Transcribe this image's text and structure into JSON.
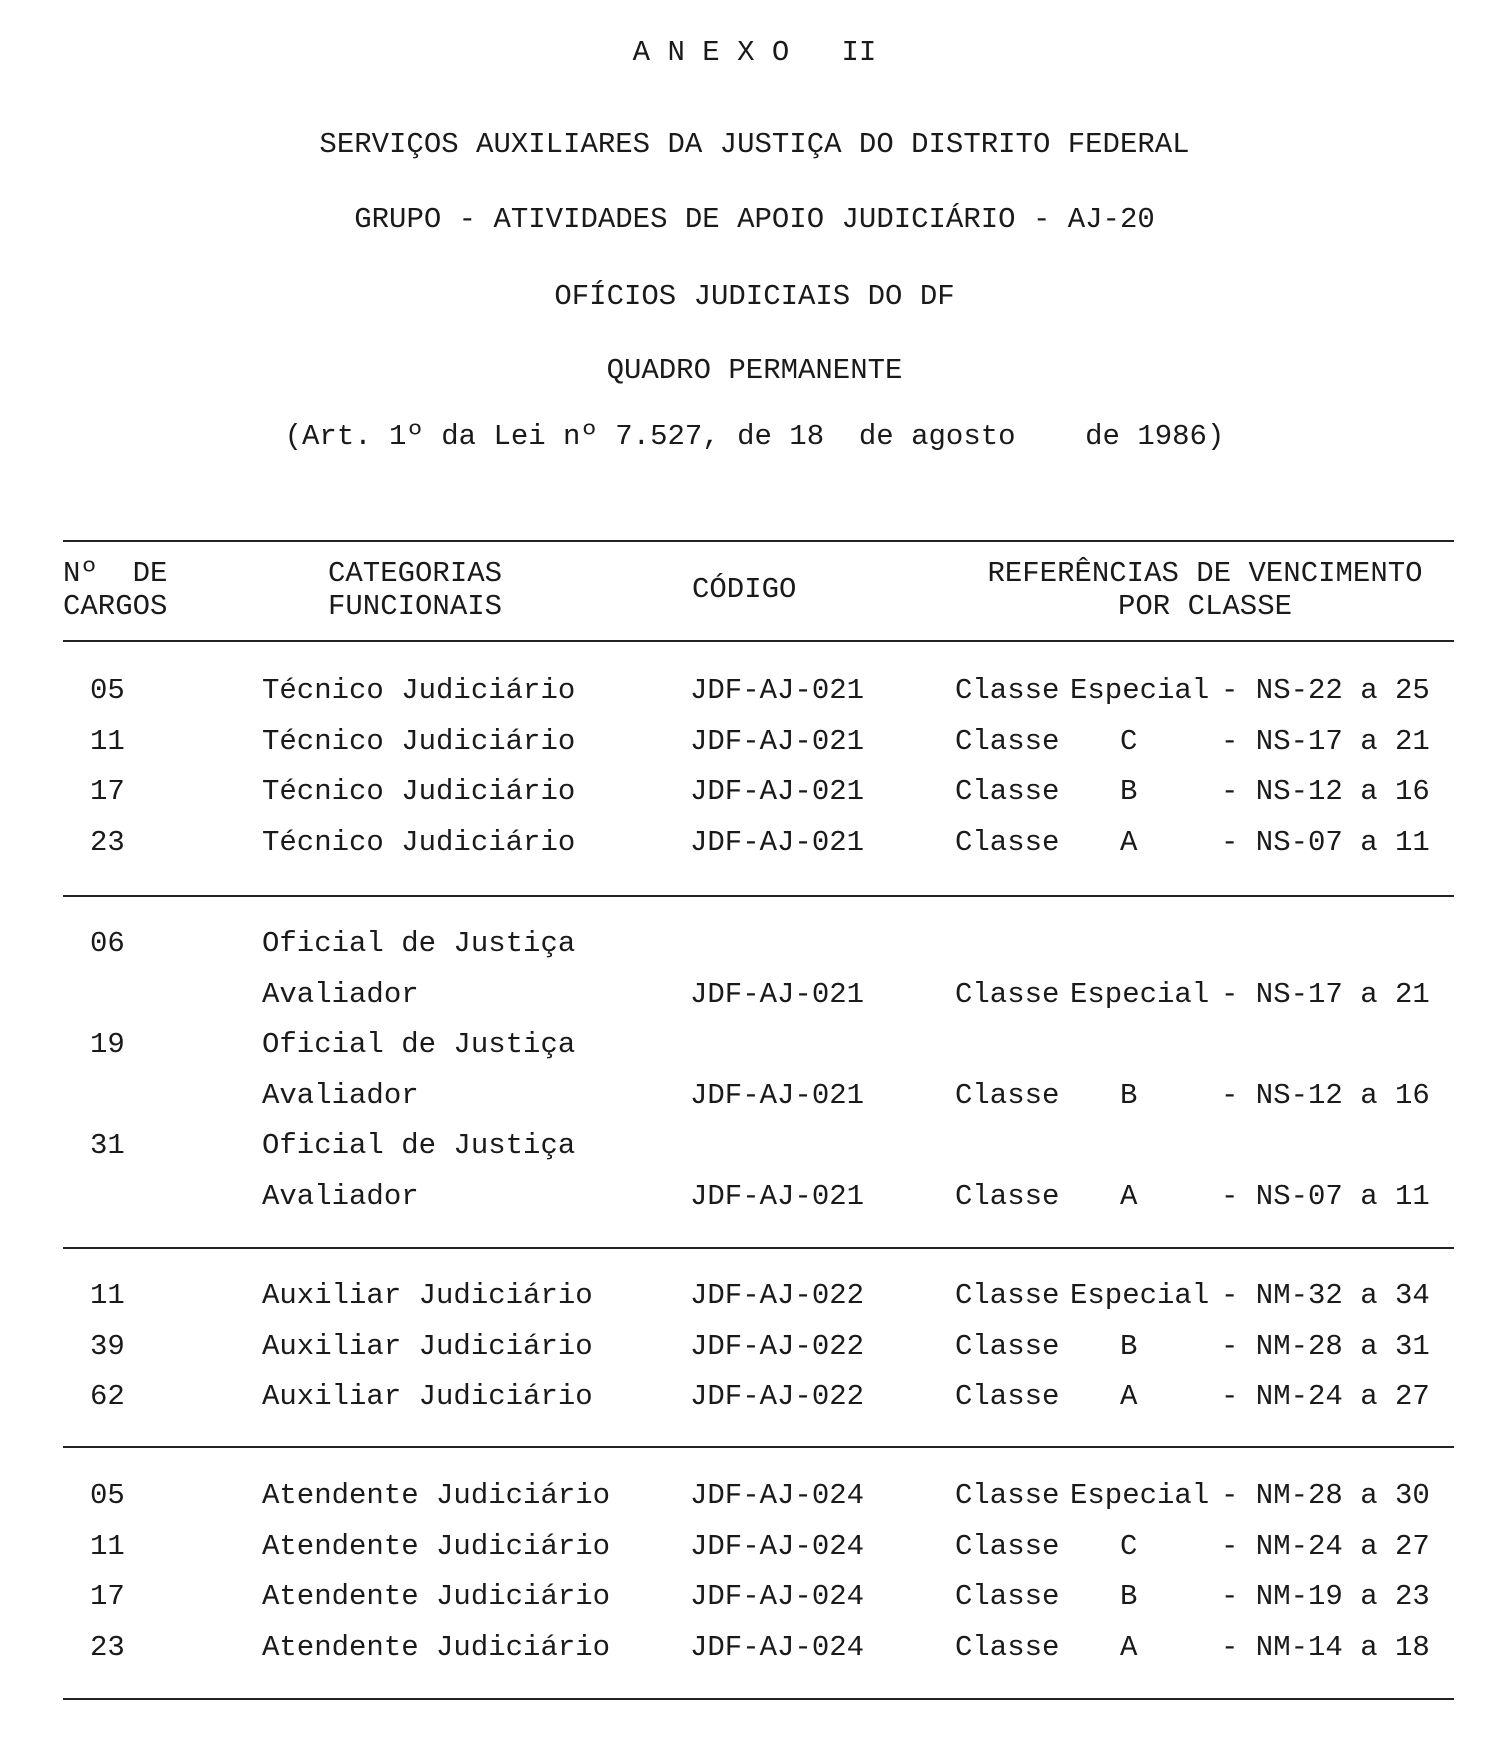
{
  "heading": {
    "annex": "A N E X O   II",
    "line1": "SERVIÇOS AUXILIARES DA JUSTIÇA DO DISTRITO FEDERAL",
    "line2": "GRUPO - ATIVIDADES DE APOIO JUDICIÁRIO - AJ-20",
    "line3": "OFÍCIOS JUDICIAIS DO DF",
    "line4": "QUADRO PERMANENTE",
    "line5": "(Art. 1º da Lei nº 7.527, de 18  de agosto    de 1986)"
  },
  "table": {
    "headers": {
      "cargos": "Nº  DE\nCARGOS",
      "categorias": "CATEGORIAS\nFUNCIONAIS",
      "codigo": "CÓDIGO",
      "referencias": "REFERÊNCIAS DE VENCIMENTO\nPOR CLASSE"
    },
    "groups": [
      {
        "rows": [
          {
            "n": "05",
            "cat": "Técnico Judiciário",
            "code": "JDF-AJ-021",
            "classe": "Classe",
            "letter": "Especial",
            "ref": "- NS-22 a 25"
          },
          {
            "n": "11",
            "cat": "Técnico Judiciário",
            "code": "JDF-AJ-021",
            "classe": "Classe",
            "letter": "C",
            "ref": "- NS-17 a 21"
          },
          {
            "n": "17",
            "cat": "Técnico Judiciário",
            "code": "JDF-AJ-021",
            "classe": "Classe",
            "letter": "B",
            "ref": "- NS-12 a 16"
          },
          {
            "n": "23",
            "cat": "Técnico Judiciário",
            "code": "JDF-AJ-021",
            "classe": "Classe",
            "letter": "A",
            "ref": "- NS-07 a 11"
          }
        ]
      },
      {
        "rows": [
          {
            "n": "06",
            "cat": "Oficial de Justiça",
            "code": "",
            "classe": "",
            "letter": "",
            "ref": ""
          },
          {
            "n": "",
            "cat": "Avaliador",
            "code": "JDF-AJ-021",
            "classe": "Classe",
            "letter": "Especial",
            "ref": "- NS-17 a 21"
          },
          {
            "n": "19",
            "cat": "Oficial de Justiça",
            "code": "",
            "classe": "",
            "letter": "",
            "ref": ""
          },
          {
            "n": "",
            "cat": "Avaliador",
            "code": "JDF-AJ-021",
            "classe": "Classe",
            "letter": "B",
            "ref": "- NS-12 a 16"
          },
          {
            "n": "31",
            "cat": "Oficial de Justiça",
            "code": "",
            "classe": "",
            "letter": "",
            "ref": ""
          },
          {
            "n": "",
            "cat": "Avaliador",
            "code": "JDF-AJ-021",
            "classe": "Classe",
            "letter": "A",
            "ref": "- NS-07 a 11"
          }
        ]
      },
      {
        "rows": [
          {
            "n": "11",
            "cat": "Auxiliar Judiciário",
            "code": "JDF-AJ-022",
            "classe": "Classe",
            "letter": "Especial",
            "ref": "- NM-32 a 34"
          },
          {
            "n": "39",
            "cat": "Auxiliar Judiciário",
            "code": "JDF-AJ-022",
            "classe": "Classe",
            "letter": "B",
            "ref": "- NM-28 a 31"
          },
          {
            "n": "62",
            "cat": "Auxiliar Judiciário",
            "code": "JDF-AJ-022",
            "classe": "Classe",
            "letter": "A",
            "ref": "- NM-24 a 27"
          }
        ]
      },
      {
        "rows": [
          {
            "n": "05",
            "cat": "Atendente Judiciário",
            "code": "JDF-AJ-024",
            "classe": "Classe",
            "letter": "Especial",
            "ref": "- NM-28 a 30"
          },
          {
            "n": "11",
            "cat": "Atendente Judiciário",
            "code": "JDF-AJ-024",
            "classe": "Classe",
            "letter": "C",
            "ref": "- NM-24 a 27"
          },
          {
            "n": "17",
            "cat": "Atendente Judiciário",
            "code": "JDF-AJ-024",
            "classe": "Classe",
            "letter": "B",
            "ref": "- NM-19 a 23"
          },
          {
            "n": "23",
            "cat": "Atendente Judiciário",
            "code": "JDF-AJ-024",
            "classe": "Classe",
            "letter": "A",
            "ref": "- NM-14 a 18"
          }
        ]
      }
    ]
  }
}
